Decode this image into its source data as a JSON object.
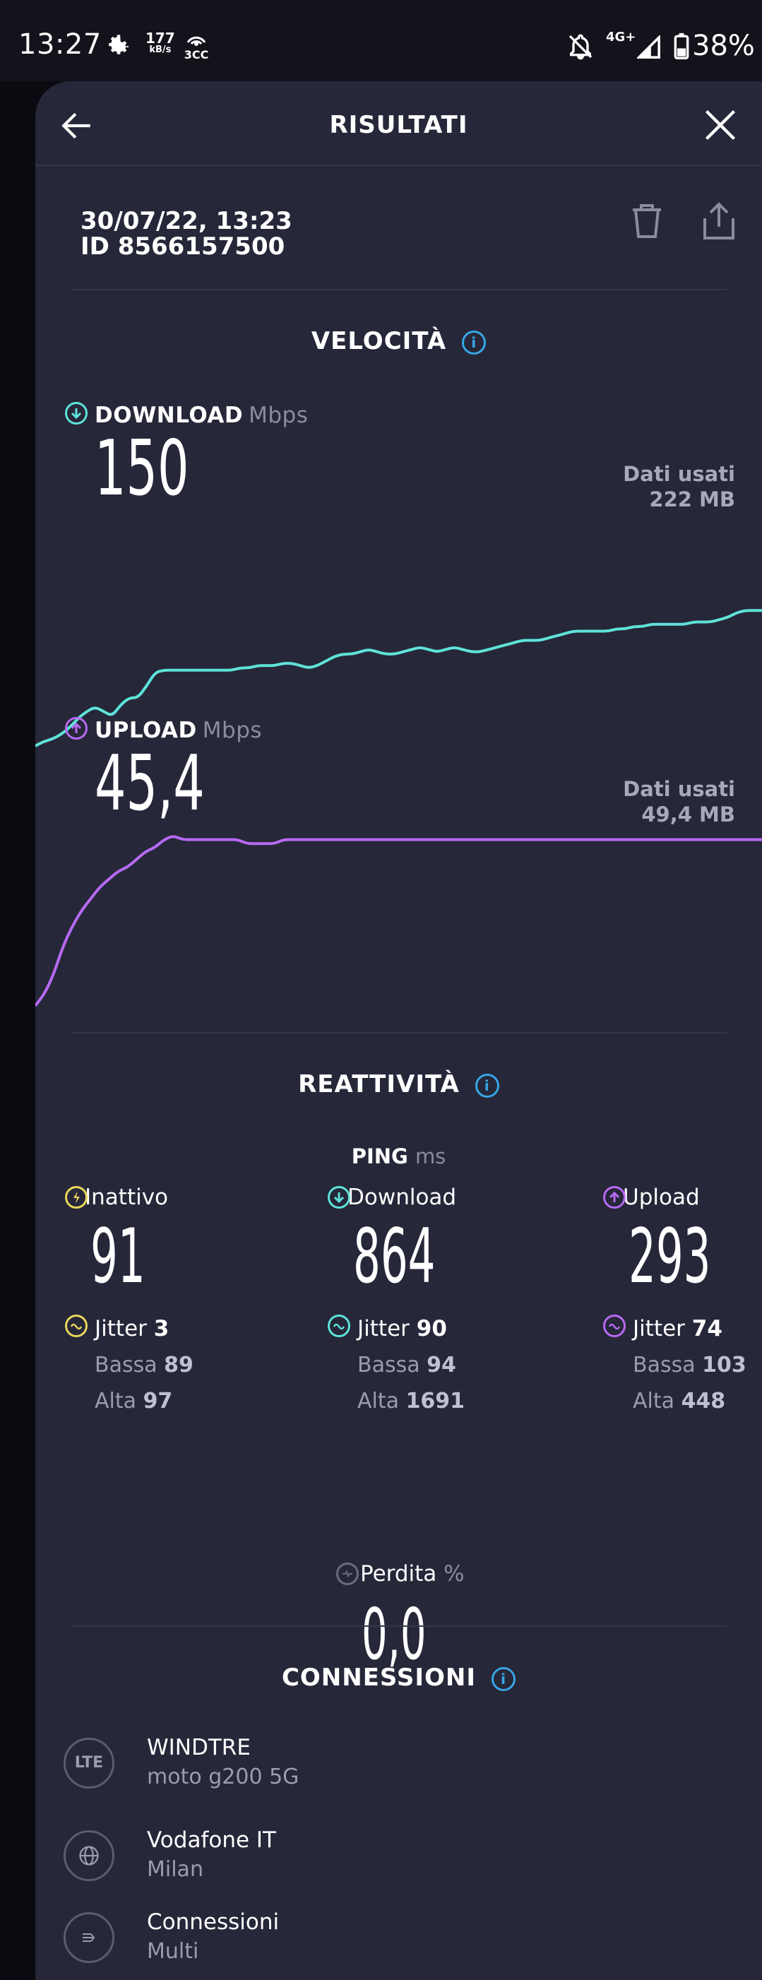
{
  "status_bar": {
    "time": "13:27",
    "speed_value": "177",
    "speed_unit": "kB/s",
    "hotspot_label": "3CC",
    "network": "4G+",
    "battery": "38%"
  },
  "header": {
    "title": "RISULTATI"
  },
  "result": {
    "date": "30/07/22, 13:23",
    "id": "ID 8566157500"
  },
  "speed": {
    "title": "VELOCITÀ",
    "download": {
      "label": "DOWNLOAD",
      "unit": "Mbps",
      "value": "150",
      "data_label": "Dati usati",
      "data_value": "222 MB",
      "color": "#5ee3da"
    },
    "upload": {
      "label": "UPLOAD",
      "unit": "Mbps",
      "value": "45,4",
      "data_label": "Dati usati",
      "data_value": "49,4 MB",
      "color": "#b66af2"
    }
  },
  "responsiveness": {
    "title": "REATTIVITÀ",
    "ping_label": "PING",
    "ping_unit": "ms",
    "idle": {
      "label": "Inattivo",
      "value": "91",
      "jitter_label": "Jitter",
      "jitter": "3",
      "low_label": "Bassa",
      "low": "89",
      "high_label": "Alta",
      "high": "97",
      "color": "#e8d65a"
    },
    "download": {
      "label": "Download",
      "value": "864",
      "jitter_label": "Jitter",
      "jitter": "90",
      "low_label": "Bassa",
      "low": "94",
      "high_label": "Alta",
      "high": "1691",
      "color": "#5ee3da"
    },
    "upload": {
      "label": "Upload",
      "value": "293",
      "jitter_label": "Jitter",
      "jitter": "74",
      "low_label": "Bassa",
      "low": "103",
      "high_label": "Alta",
      "high": "448",
      "color": "#b66af2"
    },
    "loss": {
      "label": "Perdita",
      "unit": "%",
      "value": "0,0"
    }
  },
  "connections": {
    "title": "CONNESSIONI",
    "items": [
      {
        "icon": "lte-icon",
        "badge": "LTE",
        "name": "WINDTRE",
        "sub": "moto g200 5G"
      },
      {
        "icon": "globe-icon",
        "name": "Vodafone IT",
        "sub": "Milan"
      },
      {
        "icon": "connections-icon",
        "name": "Connessioni",
        "sub": "Multi"
      }
    ]
  },
  "chart_data": [
    {
      "type": "line",
      "title": "DOWNLOAD",
      "series": [
        {
          "name": "DOWNLOAD",
          "values": [
            12,
            14,
            15,
            17,
            20,
            24,
            27,
            29,
            27,
            25,
            30,
            33,
            33,
            38,
            44,
            45,
            45,
            45,
            45,
            45,
            45,
            45,
            45,
            45,
            46,
            46,
            47,
            47,
            47,
            48,
            48,
            47,
            46,
            47,
            49,
            51,
            52,
            52,
            53,
            54,
            53,
            52,
            52,
            53,
            54,
            55,
            54,
            53,
            54,
            55,
            54,
            53,
            53,
            54,
            55,
            56,
            57,
            58,
            58,
            58,
            59,
            60,
            61,
            62,
            62,
            62,
            62,
            62,
            63,
            63,
            64,
            64,
            65,
            65,
            65,
            65,
            65,
            66,
            66,
            66,
            67,
            68,
            70,
            71,
            71,
            71
          ]
        }
      ],
      "ylim": [
        0,
        80
      ]
    },
    {
      "type": "line",
      "title": "UPLOAD",
      "series": [
        {
          "name": "UPLOAD",
          "values": [
            2,
            5,
            10,
            17,
            22,
            26,
            29,
            32,
            34,
            36,
            37,
            39,
            41,
            42,
            44,
            45,
            44,
            44,
            44,
            44,
            44,
            44,
            44,
            43,
            43,
            43,
            43,
            44,
            44,
            44,
            44,
            44,
            44,
            44,
            44,
            44,
            44,
            44,
            44,
            44,
            44,
            44,
            44,
            44,
            44,
            44,
            44,
            44,
            44,
            44,
            44,
            44,
            44,
            44,
            44,
            44,
            44,
            44,
            44,
            44,
            44,
            44,
            44,
            44,
            44,
            44,
            44,
            44,
            44,
            44,
            44,
            44,
            44,
            44,
            44,
            44,
            44,
            44,
            44,
            44
          ]
        }
      ],
      "ylim": [
        0,
        50
      ]
    }
  ]
}
